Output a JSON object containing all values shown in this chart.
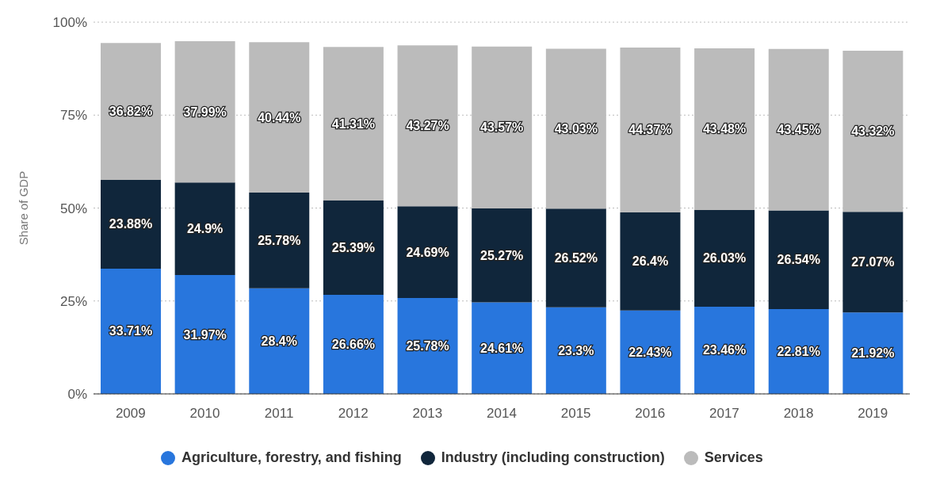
{
  "chart_data": {
    "type": "bar",
    "stacked": true,
    "ylabel": "Share of GDP",
    "categories": [
      "2009",
      "2010",
      "2011",
      "2012",
      "2013",
      "2014",
      "2015",
      "2016",
      "2017",
      "2018",
      "2019"
    ],
    "series": [
      {
        "name": "Agriculture, forestry, and fishing",
        "color": "#2876dd",
        "values": [
          33.71,
          31.97,
          28.4,
          26.66,
          25.78,
          24.61,
          23.3,
          22.43,
          23.46,
          22.81,
          21.92
        ],
        "value_labels": [
          "33.71%",
          "31.97%",
          "28.4%",
          "26.66%",
          "25.78%",
          "24.61%",
          "23.3%",
          "22.43%",
          "23.46%",
          "22.81%",
          "21.92%"
        ]
      },
      {
        "name": "Industry (including construction)",
        "color": "#10263b",
        "values": [
          23.88,
          24.9,
          25.78,
          25.39,
          24.69,
          25.27,
          26.52,
          26.4,
          26.03,
          26.54,
          27.07
        ],
        "value_labels": [
          "23.88%",
          "24.9%",
          "25.78%",
          "25.39%",
          "24.69%",
          "25.27%",
          "26.52%",
          "26.4%",
          "26.03%",
          "26.54%",
          "27.07%"
        ]
      },
      {
        "name": "Services",
        "color": "#bbbbbb",
        "values": [
          36.82,
          37.99,
          40.44,
          41.31,
          43.27,
          43.57,
          43.03,
          44.37,
          43.48,
          43.45,
          43.32
        ],
        "value_labels": [
          "36.82%",
          "37.99%",
          "40.44%",
          "41.31%",
          "43.27%",
          "43.57%",
          "43.03%",
          "44.37%",
          "43.48%",
          "43.45%",
          "43.32%"
        ]
      }
    ],
    "ylim": [
      0,
      100
    ],
    "yticks": [
      {
        "value": 0,
        "label": "0%"
      },
      {
        "value": 25,
        "label": "25%"
      },
      {
        "value": 50,
        "label": "50%"
      },
      {
        "value": 75,
        "label": "75%"
      },
      {
        "value": 100,
        "label": "100%"
      }
    ],
    "grid": "y",
    "legend": "bottom"
  }
}
